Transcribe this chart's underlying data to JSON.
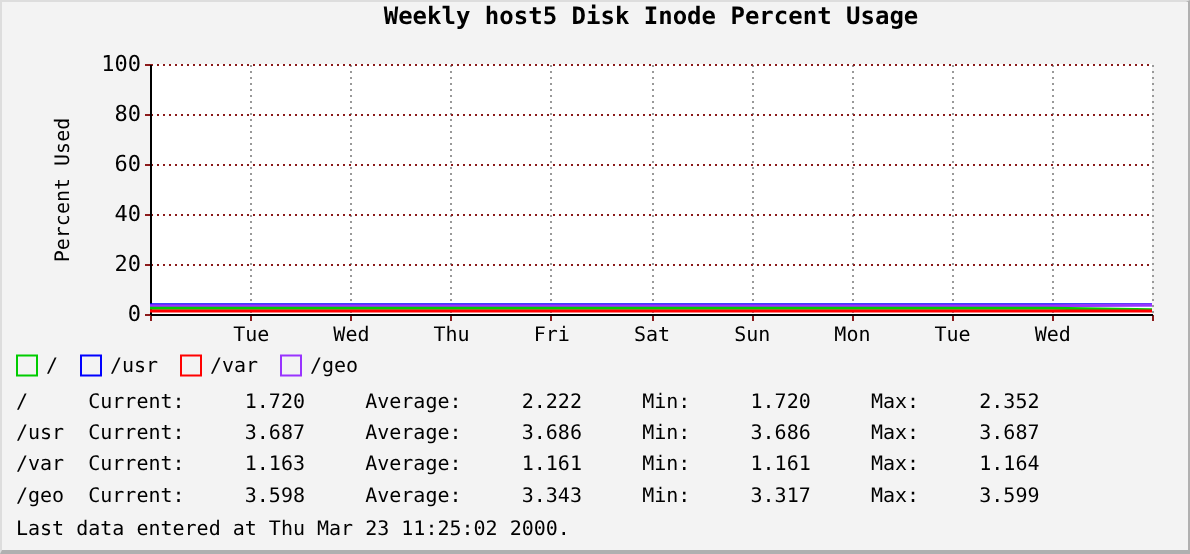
{
  "chart_data": {
    "type": "line",
    "title": "Weekly host5 Disk Inode Percent Usage",
    "ylabel": "Percent Used",
    "categories": [
      null,
      "Tue",
      "Wed",
      "Thu",
      "Fri",
      "Sat",
      "Sun",
      "Mon",
      "Tue",
      "Wed",
      null
    ],
    "series": [
      {
        "name": "/",
        "color": "#00cc00",
        "values": [
          2.3,
          2.3,
          2.3,
          2.3,
          2.3,
          2.3,
          2.3,
          2.3,
          2.3,
          2.3,
          1.7
        ]
      },
      {
        "name": "/usr",
        "color": "#0000ff",
        "values": [
          3.7,
          3.7,
          3.7,
          3.7,
          3.7,
          3.7,
          3.7,
          3.7,
          3.7,
          3.7,
          3.7
        ]
      },
      {
        "name": "/var",
        "color": "#ff0000",
        "values": [
          1.2,
          1.2,
          1.2,
          1.2,
          1.2,
          1.2,
          1.2,
          1.2,
          1.2,
          1.2,
          1.2
        ]
      },
      {
        "name": "/geo",
        "color": "#9933ff",
        "values": [
          3.3,
          3.3,
          3.3,
          3.3,
          3.3,
          3.3,
          3.3,
          3.3,
          3.3,
          3.3,
          3.6
        ]
      }
    ],
    "ylim": [
      0,
      100
    ],
    "yticks": [
      0,
      20,
      40,
      60,
      80,
      100
    ],
    "grid": true,
    "legend": "bottom left",
    "annotations": [
      "/     Current:     1.720     Average:     2.222     Min:     1.720     Max:     2.352",
      "/usr  Current:     3.687     Average:     3.686     Min:     3.686     Max:     3.687",
      "/var  Current:     1.163     Average:     1.161     Min:     1.161     Max:     1.164",
      "/geo  Current:     3.598     Average:     3.343     Min:     3.317     Max:     3.599",
      "Last data entered at Thu Mar 23 11:25:02 2000."
    ]
  }
}
